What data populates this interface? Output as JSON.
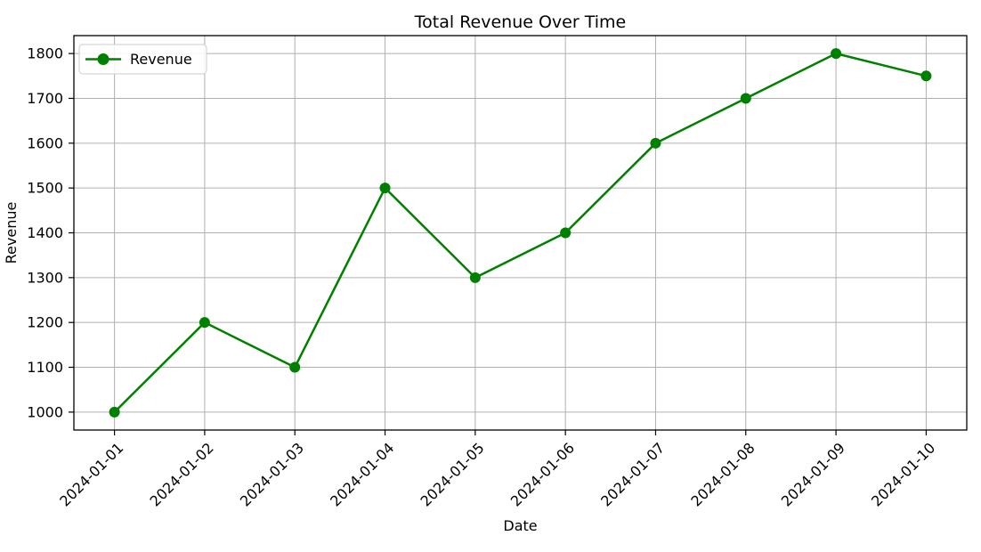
{
  "figure": {
    "background": "#ffffff",
    "text_color": "#000000"
  },
  "chart_data": {
    "type": "line",
    "title": "Total Revenue Over Time",
    "xlabel": "Date",
    "ylabel": "Revenue",
    "categories": [
      "2024-01-01",
      "2024-01-02",
      "2024-01-03",
      "2024-01-04",
      "2024-01-05",
      "2024-01-06",
      "2024-01-07",
      "2024-01-08",
      "2024-01-09",
      "2024-01-10"
    ],
    "series": [
      {
        "name": "Revenue",
        "color": "#008000",
        "marker": "circle",
        "values": [
          1000,
          1200,
          1100,
          1500,
          1300,
          1400,
          1600,
          1700,
          1800,
          1750
        ]
      }
    ],
    "yticks": [
      1000,
      1100,
      1200,
      1300,
      1400,
      1500,
      1600,
      1700,
      1800
    ],
    "ylim": [
      960,
      1840
    ],
    "grid": true,
    "grid_color": "#b0b0b0",
    "spine_color": "#000000",
    "legend_position": "upper-left",
    "x_tick_rotation": 45
  }
}
